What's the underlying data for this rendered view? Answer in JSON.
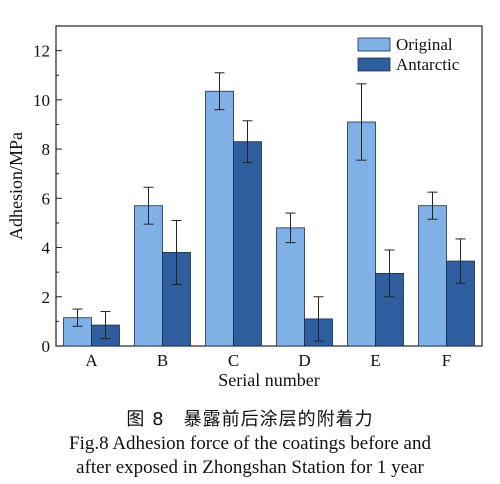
{
  "chart_data": {
    "type": "bar",
    "categories": [
      "A",
      "B",
      "C",
      "D",
      "E",
      "F"
    ],
    "series": [
      {
        "name": "Original",
        "values": [
          1.15,
          5.7,
          10.35,
          4.8,
          9.1,
          5.7
        ],
        "errors": [
          0.35,
          0.75,
          0.75,
          0.6,
          1.55,
          0.55
        ],
        "color": "#7fb1e6"
      },
      {
        "name": "Antarctic",
        "values": [
          0.85,
          3.8,
          8.3,
          1.1,
          2.95,
          3.45
        ],
        "errors": [
          0.55,
          1.3,
          0.85,
          0.9,
          0.95,
          0.9
        ],
        "color": "#2f5e9e"
      }
    ],
    "xlabel": "Serial number",
    "ylabel": "Adhesion/MPa",
    "ylim": [
      0,
      13
    ],
    "yticks": [
      0,
      2,
      4,
      6,
      8,
      10,
      12
    ],
    "legend": "top-right",
    "grid": false
  },
  "caption": {
    "cn": "图 8　暴露前后涂层的附着力",
    "en_line1": "Fig.8 Adhesion force of the coatings before and",
    "en_line2": "after exposed in Zhongshan Station for 1 year"
  }
}
